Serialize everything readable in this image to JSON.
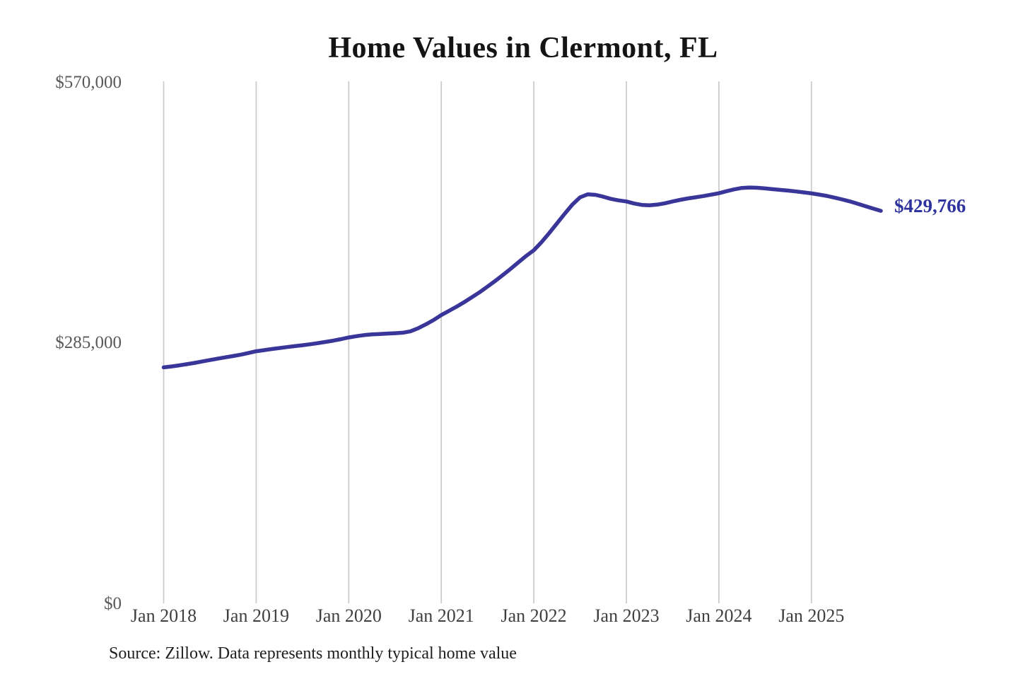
{
  "source_note": "Source: Zillow. Data represents monthly typical home value",
  "colors": {
    "line": "#3a3699",
    "end_label": "#2f339e",
    "gridline": "#cccccc",
    "title": "#141414",
    "y_tick": "#595959",
    "x_tick": "#3f3f3f",
    "source": "#1f1f1f",
    "background": "#ffffff"
  },
  "chart_data": {
    "type": "line",
    "title": "Home Values in Clermont, FL",
    "xlabel": "",
    "ylabel": "",
    "ylim": [
      0,
      570000
    ],
    "grid": "vertical-yearly",
    "legend_position": "none",
    "x_tick_labels": [
      "Jan 2018",
      "Jan 2019",
      "Jan 2020",
      "Jan 2021",
      "Jan 2022",
      "Jan 2023",
      "Jan 2024",
      "Jan 2025"
    ],
    "y_tick_labels": [
      "$0",
      "$285,000",
      "$570,000"
    ],
    "final_value": 429766,
    "final_value_label": "$429,766",
    "series": [
      {
        "name": "Typical home value",
        "start": "2018-01",
        "interval": "monthly",
        "end": "2025-10",
        "values": [
          258800,
          259800,
          261000,
          262300,
          263700,
          265200,
          266800,
          268300,
          269800,
          271200,
          272700,
          274500,
          276400,
          277600,
          278800,
          279900,
          281000,
          282000,
          283000,
          284100,
          285300,
          286600,
          288000,
          289600,
          291500,
          292900,
          294000,
          294800,
          295300,
          295700,
          296100,
          296700,
          298200,
          301500,
          305800,
          310500,
          316000,
          320500,
          325200,
          330200,
          335500,
          341000,
          347000,
          353300,
          359800,
          366500,
          373500,
          380500,
          386700,
          395500,
          405500,
          416000,
          426500,
          436500,
          444500,
          447800,
          447200,
          445200,
          442800,
          441200,
          440000,
          437800,
          436200,
          435800,
          436500,
          438000,
          440000,
          441800,
          443300,
          444600,
          445900,
          447400,
          449000,
          451200,
          453200,
          454800,
          455200,
          454900,
          454200,
          453400,
          452600,
          451800,
          450900,
          449900,
          448800,
          447500,
          446000,
          444200,
          442200,
          440000,
          437500,
          434800,
          432200,
          429766
        ]
      }
    ]
  }
}
